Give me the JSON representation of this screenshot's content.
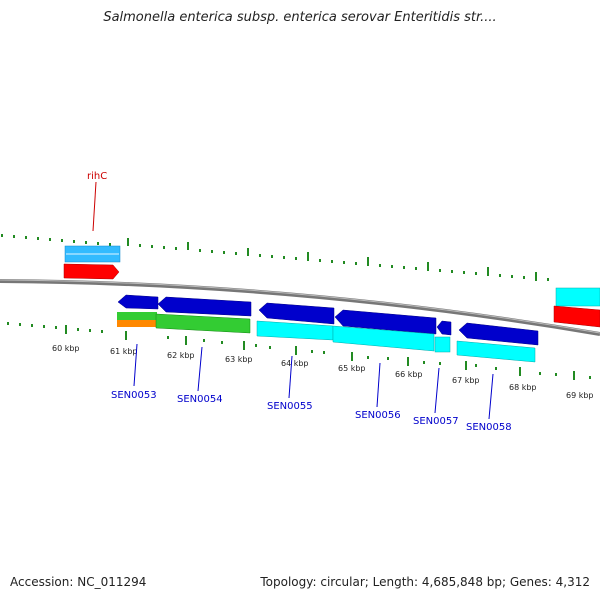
{
  "title": "Salmonella enterica subsp. enterica serovar Enteritidis str....",
  "footer": {
    "accession": "Accession: NC_011294",
    "stats": "Topology: circular; Length: 4,685,848 bp; Genes: 4,312"
  },
  "scale_labels": [
    "60 kbp",
    "61 kbp",
    "62 kbp",
    "63 kbp",
    "64 kbp",
    "65 kbp",
    "66 kbp",
    "67 kbp",
    "68 kbp",
    "69 kbp"
  ],
  "gene_labels": [
    {
      "text": "rihC",
      "color": "#cc0000"
    },
    {
      "text": "SEN0053",
      "color": "#0000cc"
    },
    {
      "text": "SEN0054",
      "color": "#0000cc"
    },
    {
      "text": "SEN0055",
      "color": "#0000cc"
    },
    {
      "text": "SEN0056",
      "color": "#0000cc"
    },
    {
      "text": "SEN0057",
      "color": "#0000cc"
    },
    {
      "text": "SEN0058",
      "color": "#0000cc"
    }
  ],
  "colors": {
    "cds_forward_strand": "#0000cc",
    "cds_feature": "#00ffff",
    "rna_red": "#ff0000",
    "light_blue": "#33bbff",
    "green": "#33cc33",
    "orange": "#ff8800",
    "tick_green": "#228b22",
    "backbone": "#888888"
  },
  "icons": [
    "blue-arrow-left",
    "red-arrow-right"
  ]
}
